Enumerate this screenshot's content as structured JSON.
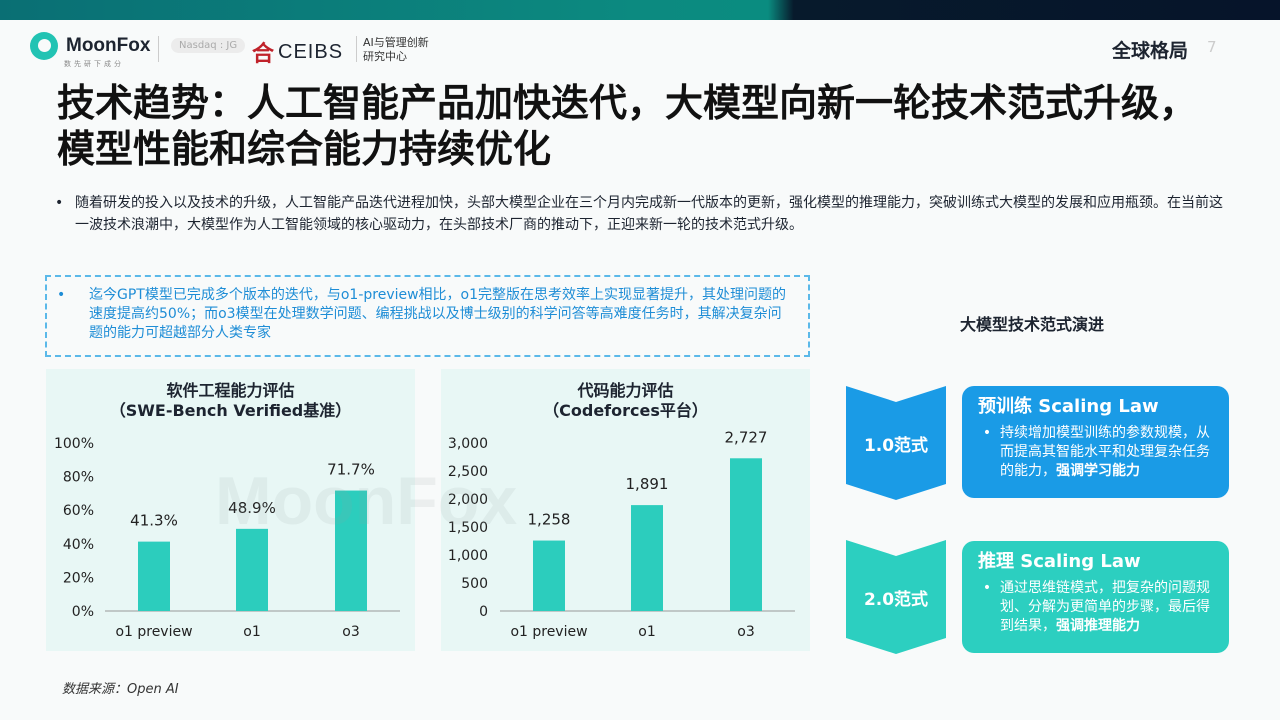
{
  "header": {
    "brand": "MoonFox",
    "brand_sub": "数先研下成分",
    "nasdaq": "Nasdaq : JG",
    "ceibs": "CEIBS",
    "ceibs_sub1": "AI与管理创新",
    "ceibs_sub2": "研究中心",
    "section": "全球格局",
    "page": "7"
  },
  "title": "技术趋势：人工智能产品加快迭代，大模型向新一轮技术范式升级，模型性能和综合能力持续优化",
  "intro": "随着研发的投入以及技术的升级，人工智能产品迭代进程加快，头部大模型企业在三个月内完成新一代版本的更新，强化模型的推理能力，突破训练式大模型的发展和应用瓶颈。在当前这一波技术浪潮中，大模型作为人工智能领域的核心驱动力，在头部技术厂商的推动下，正迎来新一轮的技术范式升级。",
  "callout": "迄今GPT模型已完成多个版本的迭代，与o1-preview相比，o1完整版在思考效率上实现显著提升，其处理问题的速度提高约50%；而o3模型在处理数学问题、编程挑战以及博士级别的科学问答等高难度任务时，其解决复杂问题的能力可超越部分人类专家",
  "bullet": "•",
  "watermark": "MoonFox",
  "chart_data": [
    {
      "type": "bar",
      "title": "软件工程能力评估",
      "subtitle": "（SWE-Bench Verified基准）",
      "categories": [
        "o1 preview",
        "o1",
        "o3"
      ],
      "values": [
        41.3,
        48.9,
        71.7
      ],
      "labels": [
        "41.3%",
        "48.9%",
        "71.7%"
      ],
      "ylim": [
        0,
        100
      ],
      "yticks": [
        "0%",
        "20%",
        "40%",
        "60%",
        "80%",
        "100%"
      ],
      "color": "#2ccdbd",
      "grid": false
    },
    {
      "type": "bar",
      "title": "代码能力评估",
      "subtitle": "（Codeforces平台）",
      "categories": [
        "o1 preview",
        "o1",
        "o3"
      ],
      "values": [
        1258,
        1891,
        2727
      ],
      "labels": [
        "1,258",
        "1,891",
        "2,727"
      ],
      "ylim": [
        0,
        3000
      ],
      "yticks": [
        "0",
        "500",
        "1,000",
        "1,500",
        "2,000",
        "2,500",
        "3,000"
      ],
      "color": "#2ccdbd",
      "grid": false
    }
  ],
  "right": {
    "title": "大模型技术范式演进",
    "stages": [
      {
        "label": "1.0范式",
        "heading": "预训练 Scaling Law",
        "text": "持续增加模型训练的参数规模，从而提高其智能水平和处理复杂任务的能力，",
        "bold": "强调学习能力",
        "color": "#1a9be6"
      },
      {
        "label": "2.0范式",
        "heading": "推理 Scaling Law",
        "text": "通过思维链模式，把复杂的问题规划、分解为更简单的步骤，最后得到结果，",
        "bold": "强调推理能力",
        "color": "#2ccfc0"
      }
    ]
  },
  "source": "数据来源：Open AI"
}
